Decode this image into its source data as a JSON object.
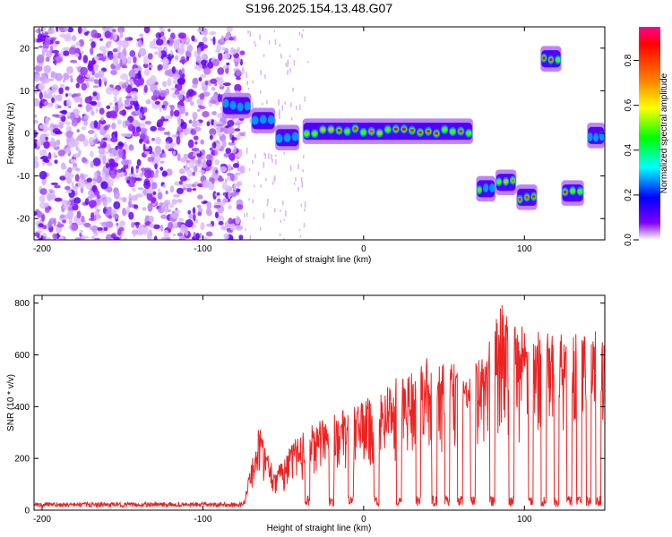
{
  "figure": {
    "title": "S196.2025.154.13.48.G07"
  },
  "chart_data": [
    {
      "type": "heatmap",
      "title": "S196.2025.154.13.48.G07",
      "xlabel": "Height of straight line (km)",
      "ylabel": "Frequency (Hz)",
      "xlim": [
        -205,
        150
      ],
      "ylim": [
        -25,
        25
      ],
      "x_ticks": [
        -200,
        -100,
        0,
        100
      ],
      "y_ticks": [
        20,
        10,
        0,
        -10,
        -20
      ],
      "colorbar": {
        "label": "Normalized spectral amplitude",
        "range": [
          0,
          0.95
        ],
        "ticks": [
          0.0,
          0.2,
          0.4,
          0.6,
          0.8
        ],
        "colormap": [
          "#ff0090",
          "#ff0000",
          "#ff8000",
          "#ffff00",
          "#00ff00",
          "#00ffff",
          "#0000ff",
          "#8000ff",
          "#ffffff"
        ]
      },
      "noise_region": {
        "x_range": [
          -205,
          -75
        ],
        "y_range": [
          -25,
          25
        ],
        "level": "low (0.0-0.1)"
      },
      "ridge_segments": [
        {
          "x": [
            -88,
            -70
          ],
          "y": 6.5,
          "peak": 0.3
        },
        {
          "x": [
            -70,
            -55
          ],
          "y": 3,
          "peak": 0.25
        },
        {
          "x": [
            -55,
            -40
          ],
          "y": -1,
          "peak": 0.2
        },
        {
          "x": [
            -38,
            68
          ],
          "y": 0.5,
          "peak": 0.95
        },
        {
          "x": [
            70,
            82
          ],
          "y": -13,
          "peak": 0.6
        },
        {
          "x": [
            82,
            95
          ],
          "y": -11.5,
          "peak": 0.9
        },
        {
          "x": [
            95,
            108
          ],
          "y": -15,
          "peak": 0.95
        },
        {
          "x": [
            110,
            123
          ],
          "y": 17.5,
          "peak": 0.95
        },
        {
          "x": [
            123,
            137
          ],
          "y": -14,
          "peak": 0.95
        },
        {
          "x": [
            139,
            150
          ],
          "y": -0.5,
          "peak": 0.5
        }
      ]
    },
    {
      "type": "line",
      "xlabel": "Height of straight line (km)",
      "ylabel": "SNR (10 * v/v)",
      "xlim": [
        -205,
        150
      ],
      "ylim": [
        0,
        830
      ],
      "x_ticks": [
        -200,
        -100,
        0,
        100
      ],
      "y_ticks": [
        0,
        200,
        400,
        600,
        800
      ],
      "color": "#ee2222",
      "envelope": [
        {
          "x": -205,
          "y": 25
        },
        {
          "x": -75,
          "y": 25
        },
        {
          "x": -65,
          "y": 330
        },
        {
          "x": -55,
          "y": 150
        },
        {
          "x": -40,
          "y": 300
        },
        {
          "x": -20,
          "y": 370
        },
        {
          "x": 0,
          "y": 420
        },
        {
          "x": 20,
          "y": 520
        },
        {
          "x": 40,
          "y": 590
        },
        {
          "x": 60,
          "y": 560
        },
        {
          "x": 75,
          "y": 600
        },
        {
          "x": 85,
          "y": 810
        },
        {
          "x": 100,
          "y": 700
        },
        {
          "x": 120,
          "y": 680
        },
        {
          "x": 140,
          "y": 700
        },
        {
          "x": 150,
          "y": 680
        }
      ]
    }
  ]
}
